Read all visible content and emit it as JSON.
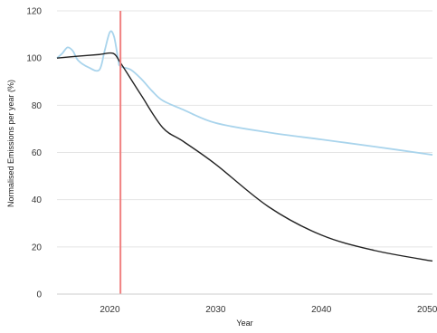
{
  "chart_data": {
    "type": "line",
    "title": "",
    "xlabel": "Year",
    "ylabel": "Normalised Emissions per year (%)",
    "xlim": [
      2015,
      2050.5
    ],
    "ylim": [
      0,
      120
    ],
    "xticks": [
      2020,
      2030,
      2040,
      2050
    ],
    "yticks": [
      0,
      20,
      40,
      60,
      80,
      100,
      120
    ],
    "grid": "horizontal",
    "legend": "none",
    "vertical_marker": {
      "x": 2021,
      "color": "#f08080"
    },
    "series": [
      {
        "color": "#a9d4ec",
        "points": [
          [
            2015,
            100
          ],
          [
            2015.5,
            102
          ],
          [
            2016,
            104.5
          ],
          [
            2016.5,
            103
          ],
          [
            2017,
            99
          ],
          [
            2018,
            96
          ],
          [
            2019,
            95
          ],
          [
            2019.5,
            103
          ],
          [
            2020,
            111
          ],
          [
            2020.4,
            109
          ],
          [
            2020.8,
            99
          ],
          [
            2021,
            96.5
          ],
          [
            2022,
            95
          ],
          [
            2023,
            91
          ],
          [
            2024,
            86
          ],
          [
            2025,
            82
          ],
          [
            2027,
            78
          ],
          [
            2030,
            72.5
          ],
          [
            2035,
            68.5
          ],
          [
            2040,
            65.5
          ],
          [
            2045,
            62.5
          ],
          [
            2050.5,
            59
          ]
        ]
      },
      {
        "color": "#222222",
        "points": [
          [
            2015,
            100
          ],
          [
            2017,
            100.8
          ],
          [
            2019,
            101.5
          ],
          [
            2020.3,
            102
          ],
          [
            2021,
            98
          ],
          [
            2022,
            91
          ],
          [
            2023,
            84
          ],
          [
            2025,
            70.5
          ],
          [
            2027,
            64.5
          ],
          [
            2030,
            55
          ],
          [
            2035,
            37
          ],
          [
            2040,
            25
          ],
          [
            2045,
            18.5
          ],
          [
            2050.5,
            14
          ]
        ]
      }
    ]
  }
}
